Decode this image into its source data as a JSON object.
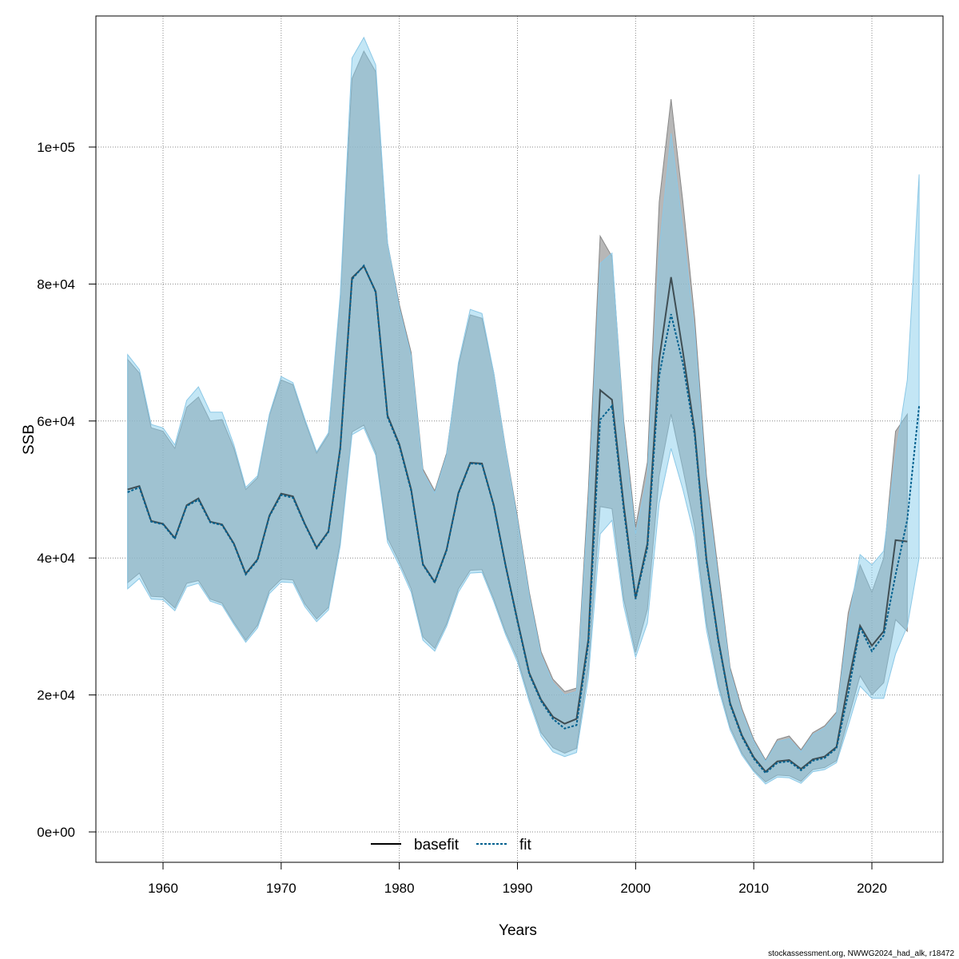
{
  "chart_data": {
    "type": "line",
    "xlabel": "Years",
    "ylabel": "SSB",
    "xlim": [
      1957,
      2024
    ],
    "ylim": [
      0,
      115000
    ],
    "x_ticks": [
      "1960",
      "1970",
      "1980",
      "1990",
      "2000",
      "2010",
      "2020"
    ],
    "y_ticks": [
      "0e+00",
      "2e+04",
      "4e+04",
      "6e+04",
      "8e+04",
      "1e+05"
    ],
    "y_tick_values": [
      0,
      20000,
      40000,
      60000,
      80000,
      100000
    ],
    "grid": true,
    "legend": {
      "placement": "bottom",
      "entries": [
        "basefit",
        "fit"
      ]
    },
    "colors": {
      "basefit_band": "#999999",
      "fit_band": "#87ceeb",
      "basefit_line": "#000000",
      "fit_line": "#00608f"
    },
    "series": [
      {
        "name": "basefit",
        "style": "solid",
        "start_year": 1957,
        "values": [
          50000,
          50500,
          45400,
          45000,
          42900,
          47700,
          48700,
          45300,
          44900,
          42100,
          37700,
          39800,
          46200,
          49400,
          49000,
          45000,
          41500,
          43900,
          56100,
          80900,
          82600,
          78900,
          60800,
          56600,
          50000,
          39100,
          36500,
          41200,
          49500,
          53900,
          53800,
          47700,
          38900,
          30900,
          23200,
          19300,
          16800,
          15800,
          16500,
          28100,
          64500,
          63100,
          47700,
          34200,
          42100,
          69000,
          81000,
          70100,
          58500,
          39800,
          28100,
          18800,
          14100,
          10900,
          8800,
          10300,
          10500,
          9200,
          10600,
          11000,
          12400,
          21700,
          30100,
          27200,
          29300,
          42600,
          42400
        ],
        "upper": [
          69000,
          67000,
          59000,
          58500,
          56000,
          62000,
          63500,
          60000,
          60200,
          56000,
          50000,
          51700,
          60800,
          66000,
          65300,
          60000,
          55300,
          58000,
          78000,
          110000,
          114000,
          111000,
          86000,
          77000,
          70000,
          53000,
          49800,
          55300,
          68000,
          75500,
          75000,
          67000,
          56000,
          46000,
          35000,
          26300,
          22300,
          20500,
          21000,
          50000,
          87000,
          84000,
          60000,
          44500,
          54000,
          92000,
          107000,
          92000,
          75000,
          52000,
          38000,
          24000,
          18000,
          13500,
          10500,
          13500,
          14000,
          12000,
          14500,
          15500,
          17500,
          32000,
          39000,
          35000,
          40000,
          58500,
          61000
        ],
        "lower": [
          36400,
          37800,
          34400,
          34300,
          32700,
          36300,
          36700,
          34000,
          33400,
          30600,
          28000,
          30200,
          35200,
          36900,
          36800,
          33300,
          31100,
          32800,
          42400,
          58400,
          59400,
          55400,
          42900,
          39400,
          35500,
          28500,
          26800,
          30400,
          35500,
          38200,
          38300,
          34000,
          29200,
          25300,
          19500,
          14500,
          12300,
          11500,
          12200,
          24000,
          47500,
          47200,
          34000,
          26200,
          32500,
          52000,
          61000,
          53000,
          44500,
          30500,
          21600,
          15300,
          11500,
          9000,
          7300,
          8300,
          8200,
          7400,
          9100,
          9400,
          10400,
          16500,
          22800,
          20000,
          21800,
          31000,
          29300
        ]
      },
      {
        "name": "fit",
        "style": "dotted",
        "start_year": 1957,
        "values": [
          49600,
          50300,
          45300,
          44900,
          42800,
          47600,
          48500,
          45200,
          44800,
          42000,
          37600,
          39700,
          46100,
          49200,
          48800,
          44900,
          41400,
          43800,
          55900,
          80700,
          82700,
          78800,
          60600,
          56400,
          49800,
          39000,
          36400,
          41100,
          49400,
          53800,
          53700,
          47600,
          38800,
          30700,
          23000,
          19100,
          16500,
          15100,
          15600,
          27500,
          60200,
          62200,
          47000,
          34000,
          41500,
          66600,
          75600,
          68400,
          57900,
          39500,
          27900,
          18600,
          13900,
          10700,
          8600,
          10100,
          10300,
          9000,
          10400,
          10800,
          12200,
          20200,
          29900,
          26400,
          28700,
          37500,
          45600,
          62200
        ],
        "upper": [
          69700,
          67500,
          59500,
          59000,
          56500,
          63000,
          65000,
          61300,
          61300,
          56500,
          50300,
          52000,
          61000,
          66500,
          65600,
          60300,
          55500,
          58300,
          78500,
          113000,
          116000,
          112000,
          86000,
          76500,
          69500,
          52500,
          49500,
          55000,
          68500,
          76300,
          75700,
          67000,
          55800,
          45500,
          34500,
          25800,
          21800,
          20000,
          20500,
          48000,
          83000,
          84500,
          59000,
          43500,
          52000,
          85000,
          102000,
          88000,
          73000,
          50500,
          37000,
          23500,
          17500,
          13200,
          10300,
          13200,
          13600,
          11700,
          14200,
          15200,
          17200,
          30500,
          40500,
          39000,
          41000,
          55000,
          66000,
          96000
        ],
        "lower": [
          35500,
          37000,
          34000,
          33900,
          32300,
          35800,
          36300,
          33700,
          33100,
          30300,
          27700,
          29800,
          34800,
          36500,
          36400,
          32900,
          30700,
          32400,
          41800,
          58000,
          59000,
          55000,
          42300,
          38900,
          35000,
          28000,
          26400,
          30000,
          35000,
          37800,
          37900,
          33600,
          28800,
          24800,
          19000,
          14000,
          11700,
          11000,
          11600,
          22500,
          43500,
          45500,
          33000,
          25500,
          30500,
          48000,
          56000,
          50000,
          43000,
          29500,
          21000,
          14900,
          11200,
          8800,
          7000,
          8000,
          7900,
          7100,
          8800,
          9100,
          10100,
          15500,
          21300,
          19500,
          19500,
          26000,
          30000,
          40000
        ]
      }
    ]
  },
  "footer": "stockassessment.org, NWWG2024_had_alk, r18472"
}
